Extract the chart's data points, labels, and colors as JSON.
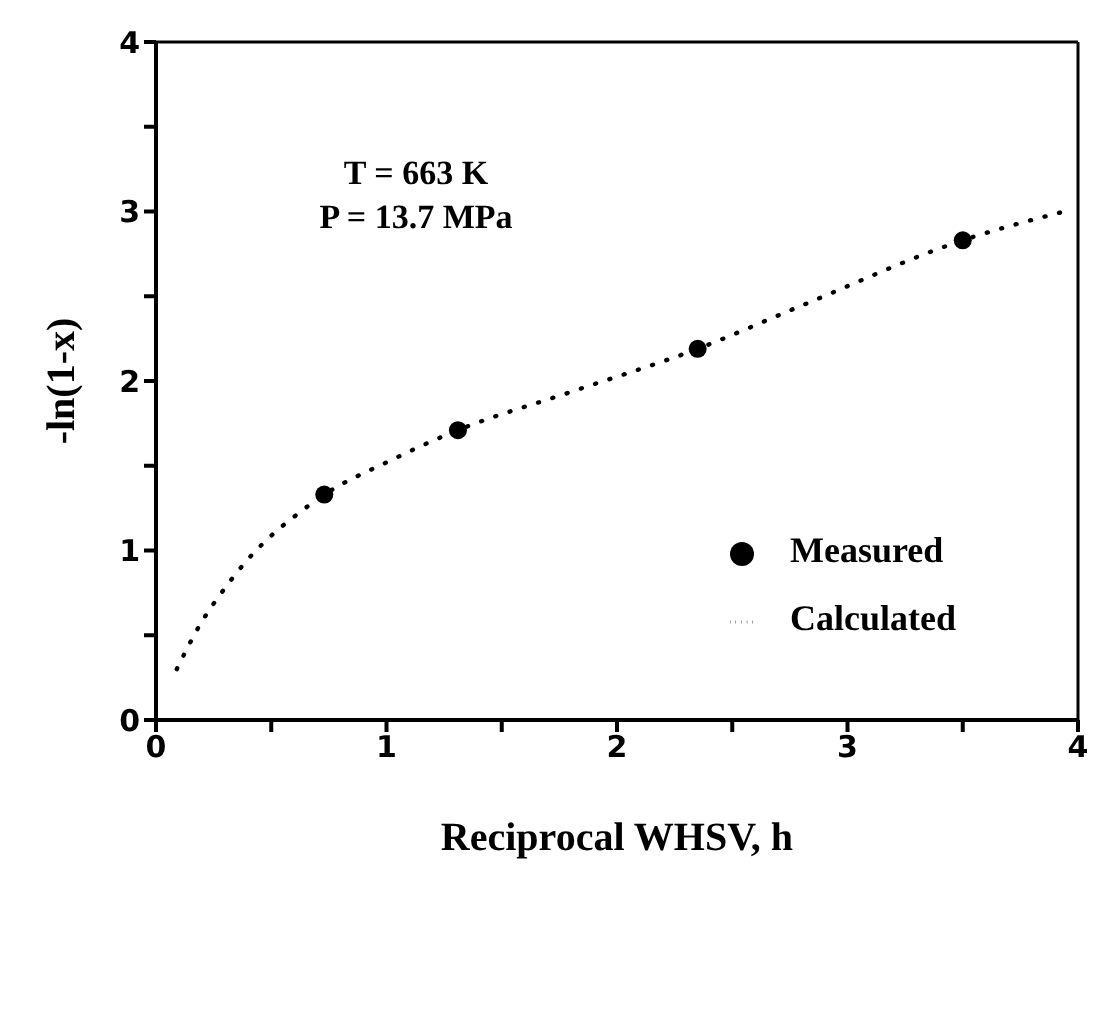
{
  "chart_data": {
    "type": "scatter",
    "xlabel": "Reciprocal WHSV, h",
    "ylabel": "-ln(1-x)",
    "annotations": [
      "T = 663 K",
      "P = 13.7 MPa"
    ],
    "xlim": [
      0,
      4
    ],
    "xticks": [
      0,
      {
        "value": 0.5,
        "label": null
      },
      1,
      {
        "value": 1.5,
        "label": null
      },
      2,
      {
        "value": 2.5,
        "label": null
      },
      3,
      {
        "value": 3.5,
        "label": null
      },
      4
    ],
    "ylim": [
      0,
      4
    ],
    "yticks": [
      0,
      {
        "value": 0.5,
        "label": null
      },
      1,
      {
        "value": 1.5,
        "label": null
      },
      2,
      {
        "value": 2.5,
        "label": null
      },
      3,
      {
        "value": 3.5,
        "label": null
      },
      4
    ],
    "grid": false,
    "legend": "right",
    "series": [
      {
        "name": "Measured",
        "color": "#000000",
        "marker": "circle",
        "x": [
          0.73,
          1.31,
          2.35,
          3.5
        ],
        "values": [
          1.33,
          1.71,
          2.19,
          2.83
        ]
      },
      {
        "name": "Calculated",
        "type": "line",
        "color": "#000000",
        "marker": "none",
        "line_style": "dotted",
        "x": [
          0.09,
          0.19,
          0.3,
          0.4,
          0.51,
          0.6,
          0.73,
          1.0,
          1.31,
          1.81,
          2.35,
          2.81,
          3.5,
          3.94
        ],
        "values": [
          0.3,
          0.56,
          0.78,
          0.95,
          1.1,
          1.2,
          1.33,
          1.52,
          1.71,
          1.94,
          2.19,
          2.45,
          2.83,
          3.0
        ]
      }
    ]
  }
}
